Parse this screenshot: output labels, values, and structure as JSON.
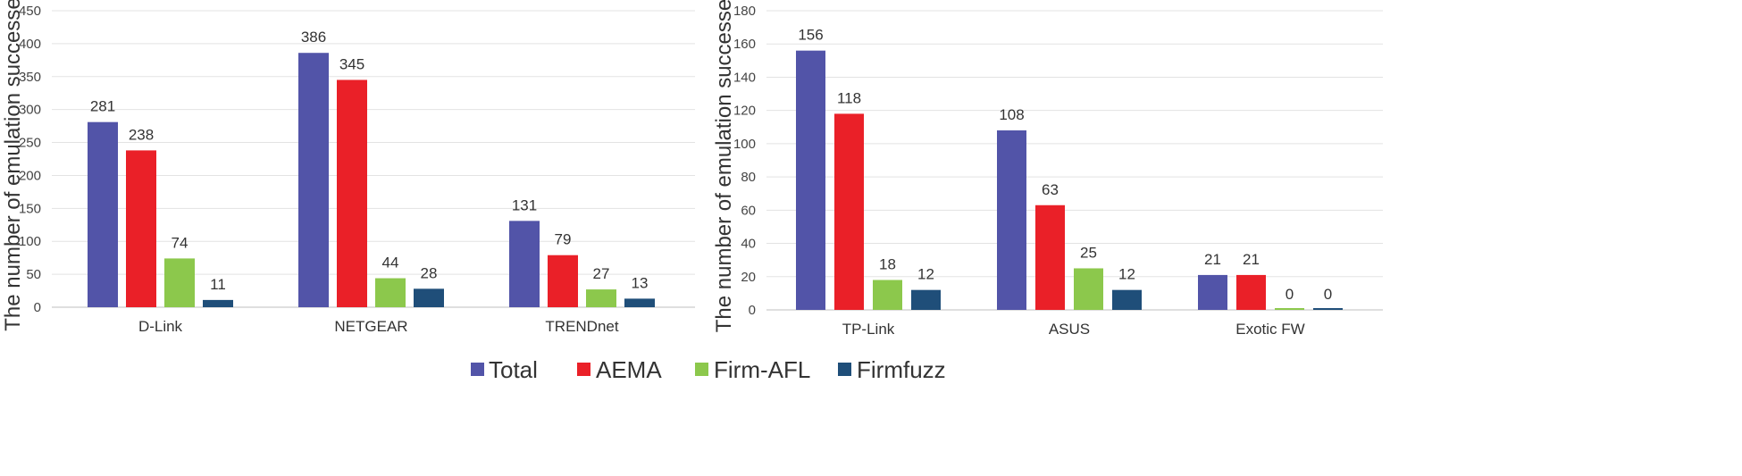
{
  "legend": {
    "items": [
      {
        "name": "Total",
        "color": "#5254a8"
      },
      {
        "name": "AEMA",
        "color": "#ea2028"
      },
      {
        "name": "Firm-AFL",
        "color": "#8cc84c"
      },
      {
        "name": "Firmfuzz",
        "color": "#1f4e79"
      }
    ]
  },
  "chart_data": [
    {
      "type": "bar",
      "ylabel": "The number of emulation successes",
      "xlabel": "",
      "ylim": [
        0,
        450
      ],
      "yticks": [
        0,
        50,
        100,
        150,
        200,
        250,
        300,
        350,
        400,
        450
      ],
      "grid": true,
      "legend_position": "bottom",
      "categories": [
        "D-Link",
        "NETGEAR",
        "TRENDnet"
      ],
      "series": [
        {
          "name": "Total",
          "values": [
            281,
            386,
            131
          ]
        },
        {
          "name": "AEMA",
          "values": [
            238,
            345,
            79
          ]
        },
        {
          "name": "Firm-AFL",
          "values": [
            74,
            44,
            27
          ]
        },
        {
          "name": "Firmfuzz",
          "values": [
            11,
            28,
            13
          ]
        }
      ]
    },
    {
      "type": "bar",
      "ylabel": "The number of emulation successes",
      "xlabel": "",
      "ylim": [
        0,
        180
      ],
      "yticks": [
        0,
        20,
        40,
        60,
        80,
        100,
        120,
        140,
        160,
        180
      ],
      "grid": true,
      "legend_position": "bottom",
      "categories": [
        "TP-Link",
        "ASUS",
        "Exotic FW"
      ],
      "series": [
        {
          "name": "Total",
          "values": [
            156,
            108,
            21
          ]
        },
        {
          "name": "AEMA",
          "values": [
            118,
            63,
            21
          ]
        },
        {
          "name": "Firm-AFL",
          "values": [
            18,
            25,
            0
          ]
        },
        {
          "name": "Firmfuzz",
          "values": [
            12,
            12,
            0
          ]
        }
      ]
    }
  ]
}
